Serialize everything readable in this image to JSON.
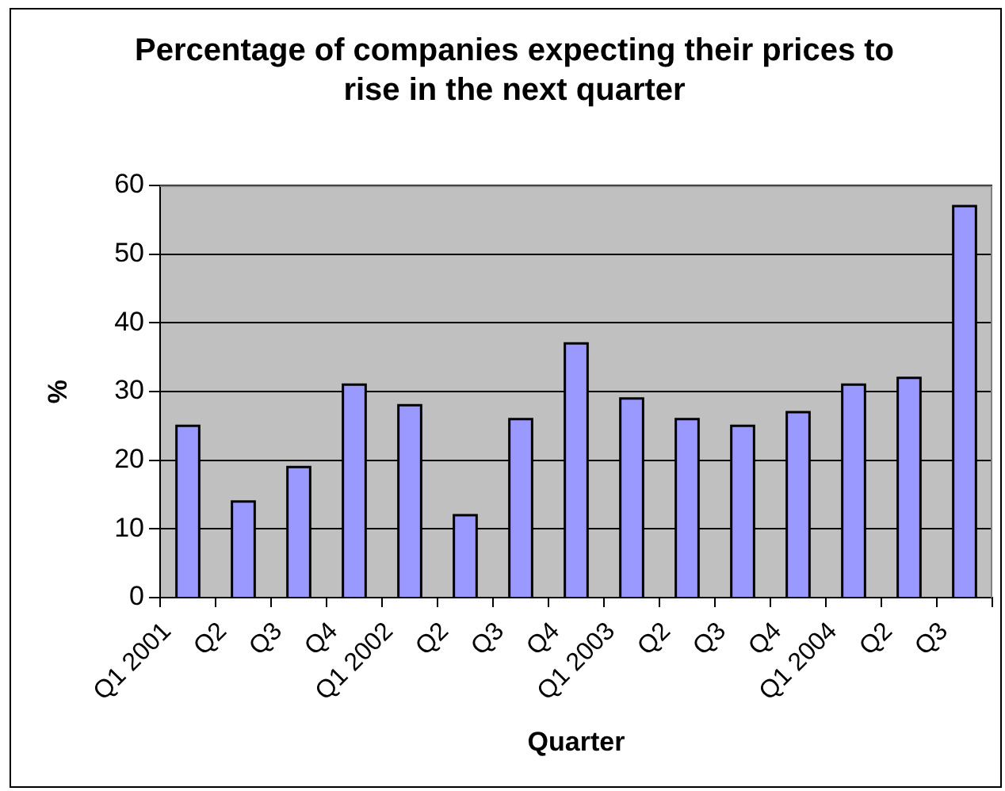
{
  "chart_data": {
    "type": "bar",
    "title": "Percentage of companies expecting their prices to rise in the next quarter",
    "xlabel": "Quarter",
    "ylabel": "%",
    "categories": [
      "Q1 2001",
      "Q2",
      "Q3",
      "Q4",
      "Q1 2002",
      "Q2",
      "Q3",
      "Q4",
      "Q1 2003",
      "Q2",
      "Q3",
      "Q4",
      "Q1 2004",
      "Q2",
      "Q3"
    ],
    "values": [
      25,
      14,
      19,
      31,
      28,
      12,
      26,
      37,
      29,
      26,
      25,
      27,
      31,
      32,
      57
    ],
    "color": "#9999ff",
    "ylim": [
      0,
      60
    ],
    "yticks": [
      0,
      10,
      20,
      30,
      40,
      50,
      60
    ],
    "grid": "y"
  }
}
